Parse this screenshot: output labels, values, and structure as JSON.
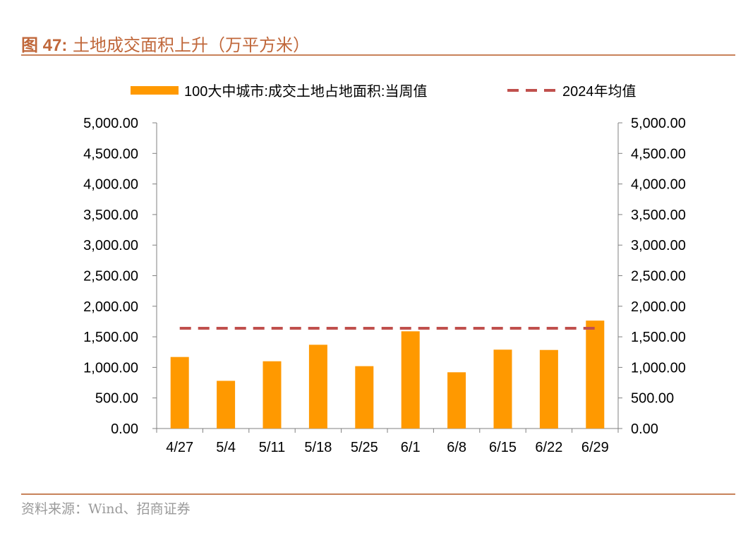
{
  "header": {
    "figure_label": "图 47:",
    "title": "土地成交面积上升（万平方米）"
  },
  "footer": {
    "source": "资料来源：Wind、招商证券"
  },
  "colors": {
    "bar": "#FF9900",
    "avg_line": "#C0504D",
    "accent": "#C0673A",
    "axis": "#808080"
  },
  "chart_data": {
    "type": "bar",
    "categories": [
      "4/27",
      "5/4",
      "5/11",
      "5/18",
      "5/25",
      "6/1",
      "6/8",
      "6/15",
      "6/22",
      "6/29"
    ],
    "series": [
      {
        "name": "100大中城市:成交土地占地面积:当周值",
        "type": "bar",
        "values": [
          1170,
          780,
          1100,
          1370,
          1020,
          1590,
          920,
          1290,
          1285,
          1765
        ]
      },
      {
        "name": "2024年均值",
        "type": "line-dashed",
        "values": [
          1640,
          1640,
          1640,
          1640,
          1640,
          1640,
          1640,
          1640,
          1640,
          1640
        ]
      }
    ],
    "ylim": [
      0,
      5000
    ],
    "y_ticks": [
      "0.00",
      "500.00",
      "1,000.00",
      "1,500.00",
      "2,000.00",
      "2,500.00",
      "3,000.00",
      "3,500.00",
      "4,000.00",
      "4,500.00",
      "5,000.00"
    ],
    "y2_ticks": [
      "0.00",
      "500.00",
      "1,000.00",
      "1,500.00",
      "2,000.00",
      "2,500.00",
      "3,000.00",
      "3,500.00",
      "4,000.00",
      "4,500.00",
      "5,000.00"
    ],
    "grid": false,
    "legend_position": "top"
  }
}
